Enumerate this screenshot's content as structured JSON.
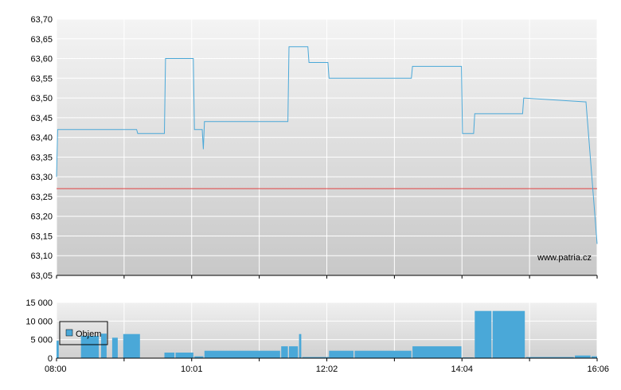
{
  "chart_data": [
    {
      "type": "line",
      "title": "",
      "xlabel": "",
      "ylabel": "",
      "ylim": [
        63.05,
        63.7
      ],
      "y_ticks": [
        "63,70",
        "63,65",
        "63,60",
        "63,55",
        "63,50",
        "63,45",
        "63,40",
        "63,35",
        "63,30",
        "63,25",
        "63,20",
        "63,15",
        "63,10",
        "63,05"
      ],
      "y_tick_values": [
        63.7,
        63.65,
        63.6,
        63.55,
        63.5,
        63.45,
        63.4,
        63.35,
        63.3,
        63.25,
        63.2,
        63.15,
        63.1,
        63.05
      ],
      "xlim": [
        "08:00",
        "16:06"
      ],
      "grid": true,
      "line_color": "#4aa8d8",
      "reference_line": {
        "value": 63.27,
        "color": "#e04040"
      },
      "watermark": "www.patria.cz",
      "series": [
        {
          "x": [
            "08:00",
            "08:01",
            "09:12",
            "09:13",
            "09:37",
            "09:38",
            "10:03",
            "10:04",
            "10:11",
            "10:12",
            "10:13",
            "11:28",
            "11:29",
            "11:46",
            "11:47",
            "12:04",
            "12:05",
            "13:19",
            "13:20",
            "14:04",
            "14:05",
            "14:15",
            "14:16",
            "14:59",
            "15:00",
            "15:55",
            "15:56",
            "16:06"
          ],
          "y": [
            63.3,
            63.42,
            63.42,
            63.41,
            63.41,
            63.6,
            63.6,
            63.42,
            63.42,
            63.37,
            63.44,
            63.44,
            63.63,
            63.63,
            63.59,
            63.59,
            63.55,
            63.55,
            63.58,
            63.58,
            63.41,
            63.41,
            63.46,
            63.46,
            63.5,
            63.49,
            63.49,
            63.13
          ]
        }
      ]
    },
    {
      "type": "bar",
      "title": "",
      "ylim": [
        0,
        15000
      ],
      "y_ticks": [
        "15 000",
        "10 000",
        "5 000",
        "0"
      ],
      "y_tick_values": [
        15000,
        10000,
        5000,
        0
      ],
      "x_ticks": [
        "08:00",
        "10:01",
        "12:02",
        "14:04",
        "16:06"
      ],
      "xlim": [
        "08:00",
        "16:06"
      ],
      "grid": true,
      "legend": {
        "placement": "top-left",
        "label": "Objem"
      },
      "bar_color": "#4aa8d8",
      "series": [
        {
          "name": "Objem",
          "bars": [
            {
              "start": "08:00",
              "end": "08:02",
              "value": 4700
            },
            {
              "start": "08:22",
              "end": "08:38",
              "value": 6000
            },
            {
              "start": "08:40",
              "end": "08:45",
              "value": 6600
            },
            {
              "start": "08:50",
              "end": "08:55",
              "value": 5500
            },
            {
              "start": "09:00",
              "end": "09:15",
              "value": 6500
            },
            {
              "start": "09:37",
              "end": "09:46",
              "value": 1500
            },
            {
              "start": "09:47",
              "end": "10:03",
              "value": 1500
            },
            {
              "start": "10:04",
              "end": "10:12",
              "value": 500
            },
            {
              "start": "10:13",
              "end": "11:21",
              "value": 2000
            },
            {
              "start": "11:22",
              "end": "11:28",
              "value": 3200
            },
            {
              "start": "11:29",
              "end": "11:37",
              "value": 3200
            },
            {
              "start": "11:38",
              "end": "11:40",
              "value": 6500
            },
            {
              "start": "11:41",
              "end": "12:05",
              "value": 300
            },
            {
              "start": "12:05",
              "end": "12:27",
              "value": 2000
            },
            {
              "start": "12:28",
              "end": "13:19",
              "value": 2000
            },
            {
              "start": "13:20",
              "end": "14:04",
              "value": 3200
            },
            {
              "start": "14:05",
              "end": "14:15",
              "value": 200
            },
            {
              "start": "14:16",
              "end": "14:31",
              "value": 12700
            },
            {
              "start": "14:32",
              "end": "15:01",
              "value": 12700
            },
            {
              "start": "15:02",
              "end": "15:45",
              "value": 300
            },
            {
              "start": "15:46",
              "end": "16:00",
              "value": 700
            },
            {
              "start": "16:01",
              "end": "16:06",
              "value": 500
            }
          ]
        }
      ]
    }
  ]
}
